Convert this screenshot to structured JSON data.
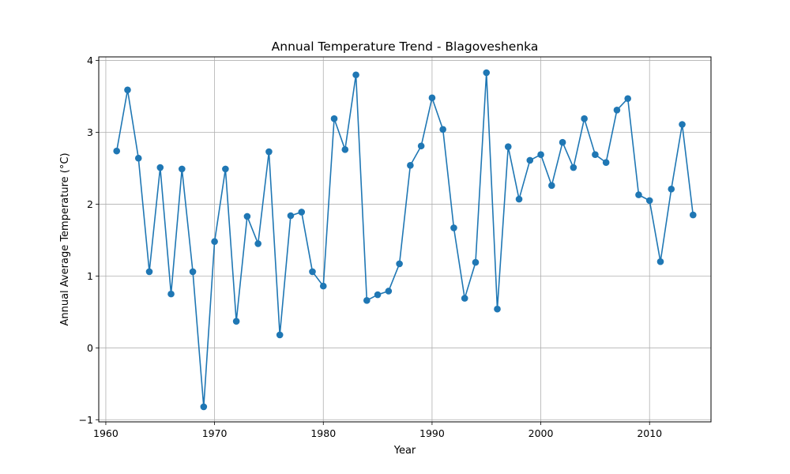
{
  "chart_data": {
    "type": "line",
    "title": "Annual Temperature Trend - Blagoveshenka",
    "xlabel": "Year",
    "ylabel": "Annual Average Temperature (°C)",
    "xlim": [
      1959.35,
      2015.65
    ],
    "ylim": [
      -1.03,
      4.05
    ],
    "x_ticks": [
      1960,
      1970,
      1980,
      1990,
      2000,
      2010
    ],
    "x_tick_labels": [
      "1960",
      "1970",
      "1980",
      "1990",
      "2000",
      "2010"
    ],
    "y_ticks": [
      -1,
      0,
      1,
      2,
      3,
      4
    ],
    "y_tick_labels": [
      "−1",
      "0",
      "1",
      "2",
      "3",
      "4"
    ],
    "grid": true,
    "color": "#1f77b4",
    "marker": "circle",
    "series": [
      {
        "x": [
          1961,
          1962,
          1963,
          1964,
          1965,
          1966,
          1967,
          1968,
          1969,
          1970,
          1971,
          1972,
          1973,
          1974,
          1975,
          1976,
          1977,
          1978,
          1979,
          1980,
          1981,
          1982,
          1983,
          1984,
          1985,
          1986,
          1987,
          1988,
          1989,
          1990,
          1991,
          1992,
          1993,
          1994,
          1995,
          1996,
          1997,
          1998,
          1999,
          2000,
          2001,
          2002,
          2003,
          2004,
          2005,
          2006,
          2007,
          2008,
          2009,
          2010,
          2011,
          2012,
          2013,
          2014
        ],
        "y": [
          2.74,
          3.59,
          2.64,
          1.06,
          2.51,
          0.75,
          2.49,
          1.06,
          -0.82,
          1.48,
          2.49,
          0.37,
          1.83,
          1.45,
          2.73,
          0.18,
          1.84,
          1.89,
          1.06,
          0.86,
          3.19,
          2.76,
          3.8,
          0.66,
          0.74,
          0.79,
          1.17,
          2.54,
          2.81,
          3.48,
          3.04,
          1.67,
          0.69,
          1.19,
          3.83,
          0.54,
          2.8,
          2.07,
          2.61,
          2.69,
          2.26,
          2.86,
          2.51,
          3.19,
          2.69,
          2.58,
          3.31,
          3.47,
          2.13,
          2.05,
          1.2,
          2.21,
          3.11,
          1.85
        ]
      }
    ]
  }
}
